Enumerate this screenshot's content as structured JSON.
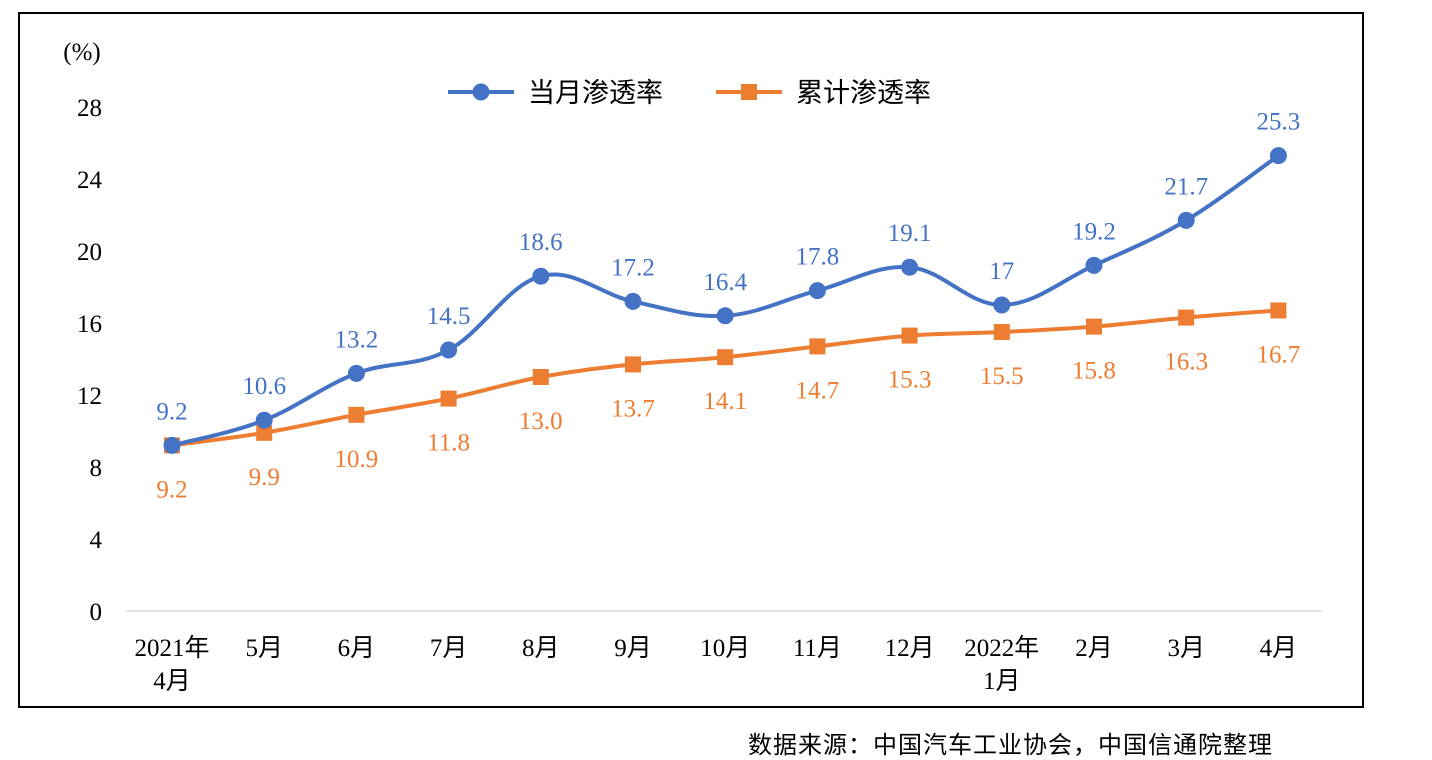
{
  "chart_data": {
    "type": "line",
    "title": "",
    "unit_label": "(%)",
    "xlabel": "",
    "ylabel": "(%)",
    "ylim": [
      0,
      28
    ],
    "yticks": [
      0,
      4,
      8,
      12,
      16,
      20,
      24,
      28
    ],
    "grid": false,
    "legend_position": "top-center",
    "categories": [
      [
        "2021年",
        "4月"
      ],
      [
        "5月"
      ],
      [
        "6月"
      ],
      [
        "7月"
      ],
      [
        "8月"
      ],
      [
        "9月"
      ],
      [
        "10月"
      ],
      [
        "11月"
      ],
      [
        "12月"
      ],
      [
        "2022年",
        "1月"
      ],
      [
        "2月"
      ],
      [
        "3月"
      ],
      [
        "4月"
      ]
    ],
    "series": [
      {
        "name": "当月渗透率",
        "color": "#4472C4",
        "marker": "circle",
        "label_position": "above",
        "values": [
          9.2,
          10.6,
          13.2,
          14.5,
          18.6,
          17.2,
          16.4,
          17.8,
          19.1,
          17,
          19.2,
          21.7,
          25.3
        ],
        "labels": [
          "9.2",
          "10.6",
          "13.2",
          "14.5",
          "18.6",
          "17.2",
          "16.4",
          "17.8",
          "19.1",
          "17",
          "19.2",
          "21.7",
          "25.3"
        ]
      },
      {
        "name": "累计渗透率",
        "color": "#ED7D31",
        "marker": "square",
        "label_position": "below",
        "values": [
          9.2,
          9.9,
          10.9,
          11.8,
          13.0,
          13.7,
          14.1,
          14.7,
          15.3,
          15.5,
          15.8,
          16.3,
          16.7
        ],
        "labels": [
          "9.2",
          "9.9",
          "10.9",
          "11.8",
          "13.0",
          "13.7",
          "14.1",
          "14.7",
          "15.3",
          "15.5",
          "15.8",
          "16.3",
          "16.7"
        ]
      }
    ]
  },
  "source_note": "数据来源：中国汽车工业协会，中国信通院整理"
}
